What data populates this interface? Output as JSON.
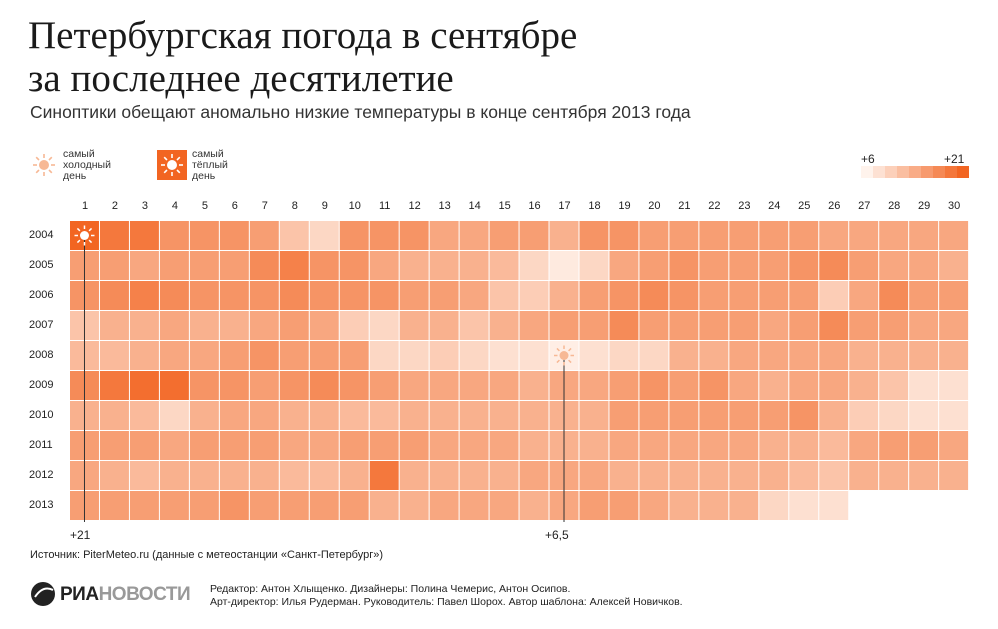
{
  "title": "Петербургская погода в сентябре за последнее десятилетие",
  "subtitle": "Синоптики обещают аномально низкие температуры в конце сентября 2013 года",
  "legend": {
    "cold_lines": [
      "самый",
      "холодный",
      "день"
    ],
    "warm_lines": [
      "самый",
      "тёплый",
      "день"
    ],
    "scale_min": "+6",
    "scale_max": "+21",
    "cold_icon": "sun-icon",
    "warm_icon": "sun-icon"
  },
  "annotations": {
    "warm_value": "+21",
    "cold_value": "+6,5"
  },
  "source": "Источник: PiterMeteo.ru (данные с метеостанции «Санкт-Петербург»)",
  "logo": {
    "bold": "РИА",
    "rest": "НОВОСТИ"
  },
  "credits": [
    "Редактор: Антон Хлыщенко. Дизайнеры: Полина Чемерис, Антон Осипов.",
    "Арт-директор: Илья Рудерман. Руководитель: Павел Шорох. Автор шаблона: Алексей Новичков."
  ],
  "colors": {
    "min": "#fff3ec",
    "max": "#f26522",
    "line": "#333333"
  },
  "chart_data": {
    "type": "heatmap",
    "title": "Петербургская погода в сентябре за последнее десятилетие",
    "x": [
      "1",
      "2",
      "3",
      "4",
      "5",
      "6",
      "7",
      "8",
      "9",
      "10",
      "11",
      "12",
      "13",
      "14",
      "15",
      "16",
      "17",
      "18",
      "19",
      "20",
      "21",
      "22",
      "23",
      "24",
      "25",
      "26",
      "27",
      "28",
      "29",
      "30"
    ],
    "y": [
      "2004",
      "2005",
      "2006",
      "2007",
      "2008",
      "2009",
      "2010",
      "2011",
      "2012",
      "2013"
    ],
    "value_range": [
      6,
      21
    ],
    "unit": "°C",
    "values": [
      [
        21,
        19,
        19,
        16,
        16,
        16,
        15,
        11,
        9,
        16,
        16,
        16,
        14,
        14,
        15,
        15,
        13,
        16,
        16,
        15,
        15,
        15,
        15,
        15,
        15,
        14,
        14,
        14,
        14,
        14
      ],
      [
        15,
        15,
        14,
        15,
        15,
        15,
        17,
        18,
        16,
        16,
        14,
        13,
        13,
        13,
        12,
        9,
        7,
        9,
        14,
        15,
        16,
        15,
        15,
        15,
        16,
        17,
        15,
        14,
        14,
        13
      ],
      [
        16,
        17,
        18,
        17,
        16,
        16,
        16,
        17,
        16,
        16,
        16,
        15,
        15,
        14,
        11,
        10,
        13,
        15,
        16,
        17,
        16,
        15,
        15,
        15,
        15,
        10,
        14,
        17,
        15,
        15
      ],
      [
        11,
        13,
        13,
        14,
        13,
        13,
        14,
        15,
        14,
        10,
        9,
        13,
        13,
        11,
        13,
        14,
        15,
        15,
        17,
        15,
        15,
        15,
        15,
        14,
        15,
        17,
        15,
        15,
        14,
        14
      ],
      [
        12,
        12,
        13,
        14,
        14,
        15,
        16,
        15,
        15,
        15,
        9,
        9,
        10,
        9,
        8,
        8,
        6.5,
        8,
        9,
        9,
        13,
        13,
        14,
        14,
        14,
        14,
        13,
        13,
        13,
        13
      ],
      [
        17,
        19,
        20,
        20,
        16,
        16,
        15,
        16,
        17,
        16,
        15,
        14,
        14,
        14,
        14,
        13,
        14,
        14,
        15,
        16,
        15,
        16,
        14,
        13,
        14,
        14,
        13,
        11,
        8,
        8
      ],
      [
        13,
        13,
        12,
        9,
        13,
        14,
        14,
        13,
        13,
        12,
        12,
        13,
        13,
        13,
        13,
        13,
        13,
        13,
        15,
        15,
        15,
        15,
        15,
        15,
        16,
        13,
        10,
        9,
        8,
        8
      ],
      [
        15,
        15,
        15,
        14,
        15,
        15,
        15,
        14,
        14,
        15,
        15,
        15,
        14,
        14,
        14,
        13,
        13,
        13,
        14,
        14,
        14,
        14,
        14,
        13,
        13,
        12,
        14,
        15,
        15,
        14
      ],
      [
        14,
        13,
        12,
        13,
        13,
        13,
        13,
        12,
        12,
        13,
        19,
        13,
        13,
        13,
        13,
        14,
        14,
        14,
        13,
        13,
        13,
        13,
        13,
        13,
        12,
        11,
        13,
        13,
        13,
        13
      ],
      [
        15,
        15,
        15,
        15,
        15,
        16,
        15,
        15,
        15,
        15,
        13,
        13,
        14,
        14,
        14,
        13,
        14,
        15,
        15,
        14,
        13,
        13,
        13,
        9,
        8,
        8,
        null,
        null,
        null,
        null
      ]
    ],
    "warmest": {
      "year": "2004",
      "day": "1",
      "value": 21
    },
    "coldest": {
      "year": "2008",
      "day": "17",
      "value": 6.5
    }
  }
}
